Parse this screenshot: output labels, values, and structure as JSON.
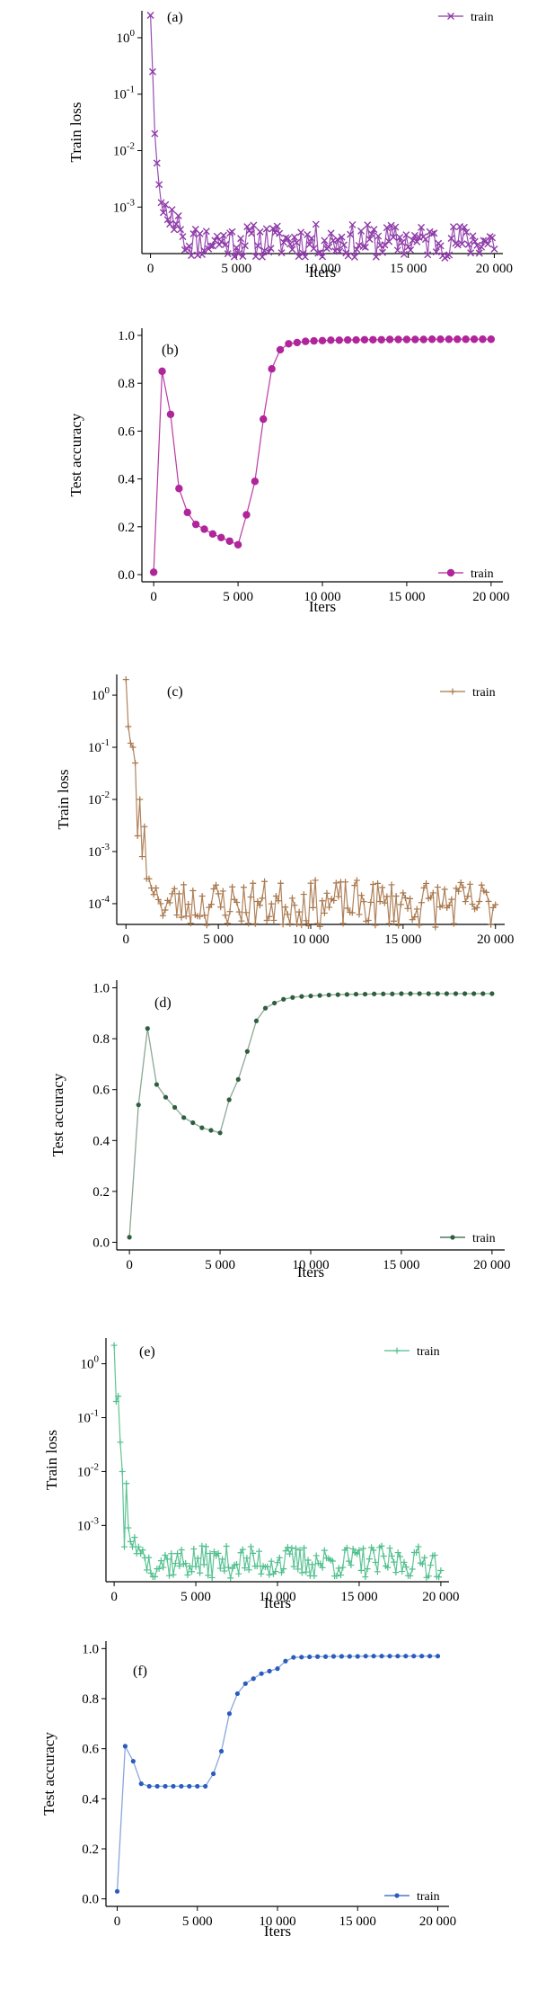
{
  "colors": {
    "a": "#8e3aa8",
    "b": "#b0259a",
    "c": "#a8764a",
    "d": "#2e5e3e",
    "e": "#4fbf8c",
    "f": "#2a5cbd"
  },
  "chart_data": [
    {
      "id": "a",
      "type": "line",
      "panel_label": "(a)",
      "xlabel": "Iters",
      "ylabel": "Train loss",
      "yscale": "log",
      "xlim": [
        -500,
        20500
      ],
      "ylim": [
        0.00015,
        3
      ],
      "xticks": [
        "0",
        "5 000",
        "10 000",
        "15 000",
        "20 000"
      ],
      "yticks": [
        "10^0",
        "10^-1",
        "10^-2",
        "10^-3"
      ],
      "marker": "x",
      "legend_position": "top-right",
      "series": [
        {
          "name": "train",
          "x_start": 0,
          "x_step": 125,
          "noise_amp": 0.3,
          "seed": 11,
          "values_head": [
            2.5,
            0.25,
            0.02,
            0.006,
            0.0025,
            0.0012,
            0.0008,
            0.0011,
            0.0006,
            0.0005,
            0.0009,
            0.0004,
            0.0005,
            0.0007,
            0.0004,
            0.0003
          ],
          "tail_base": 0.00025
        }
      ]
    },
    {
      "id": "b",
      "type": "line",
      "panel_label": "(b)",
      "xlabel": "Iters",
      "ylabel": "Test accuracy",
      "yscale": "linear",
      "xlim": [
        -700,
        20700
      ],
      "ylim": [
        -0.03,
        1.03
      ],
      "xticks": [
        "0",
        "5 000",
        "10 000",
        "15 000",
        "20 000"
      ],
      "yticks": [
        "0.0",
        "0.2",
        "0.4",
        "0.6",
        "0.8",
        "1.0"
      ],
      "marker": "circle",
      "legend_position": "bottom-right",
      "series": [
        {
          "name": "train",
          "x": [
            0,
            500,
            1000,
            1500,
            2000,
            2500,
            3000,
            3500,
            4000,
            4500,
            5000,
            5500,
            6000,
            6500,
            7000,
            7500,
            8000,
            8500,
            9000,
            9500,
            10000,
            10500,
            11000,
            11500,
            12000,
            12500,
            13000,
            13500,
            14000,
            14500,
            15000,
            15500,
            16000,
            16500,
            17000,
            17500,
            18000,
            18500,
            19000,
            19500,
            20000
          ],
          "y": [
            0.01,
            0.85,
            0.67,
            0.36,
            0.26,
            0.21,
            0.19,
            0.17,
            0.155,
            0.14,
            0.125,
            0.25,
            0.39,
            0.65,
            0.86,
            0.94,
            0.965,
            0.97,
            0.975,
            0.977,
            0.978,
            0.98,
            0.98,
            0.981,
            0.981,
            0.982,
            0.982,
            0.982,
            0.983,
            0.983,
            0.983,
            0.983,
            0.983,
            0.984,
            0.984,
            0.984,
            0.984,
            0.984,
            0.984,
            0.984,
            0.984
          ]
        }
      ]
    },
    {
      "id": "c",
      "type": "line",
      "panel_label": "(c)",
      "xlabel": "",
      "ylabel": "Train loss",
      "yscale": "log",
      "xlim": [
        -500,
        20500
      ],
      "ylim": [
        4e-05,
        2.5
      ],
      "xticks": [
        "0",
        "5 000",
        "10 000",
        "15 000",
        "20 000"
      ],
      "yticks": [
        "10^0",
        "10^-1",
        "10^-2",
        "10^-3",
        "10^-4"
      ],
      "marker": "plus",
      "legend_position": "top-right",
      "series": [
        {
          "name": "train",
          "x_start": 0,
          "x_step": 125,
          "noise_amp": 0.45,
          "seed": 23,
          "values_head": [
            2.0,
            0.25,
            0.12,
            0.1,
            0.05,
            0.002,
            0.01,
            0.0008,
            0.003,
            0.0003,
            0.0003,
            0.0002,
            0.00015,
            0.0002,
            0.00012,
            0.0001
          ],
          "tail_base": 0.0001
        }
      ]
    },
    {
      "id": "d",
      "type": "line",
      "panel_label": "(d)",
      "xlabel": "Iters",
      "ylabel": "Test accuracy",
      "yscale": "linear",
      "xlim": [
        -700,
        20700
      ],
      "ylim": [
        -0.03,
        1.03
      ],
      "xticks": [
        "0",
        "5 000",
        "10 000",
        "15 000",
        "20 000"
      ],
      "yticks": [
        "0.0",
        "0.2",
        "0.4",
        "0.6",
        "0.8",
        "1.0"
      ],
      "marker": "dot",
      "legend_position": "bottom-right",
      "series": [
        {
          "name": "train",
          "x": [
            0,
            500,
            1000,
            1500,
            2000,
            2500,
            3000,
            3500,
            4000,
            4500,
            5000,
            5500,
            6000,
            6500,
            7000,
            7500,
            8000,
            8500,
            9000,
            9500,
            10000,
            10500,
            11000,
            11500,
            12000,
            12500,
            13000,
            13500,
            14000,
            14500,
            15000,
            15500,
            16000,
            16500,
            17000,
            17500,
            18000,
            18500,
            19000,
            19500,
            20000
          ],
          "y": [
            0.02,
            0.54,
            0.84,
            0.62,
            0.57,
            0.53,
            0.49,
            0.47,
            0.45,
            0.44,
            0.43,
            0.56,
            0.64,
            0.75,
            0.87,
            0.92,
            0.94,
            0.955,
            0.962,
            0.966,
            0.968,
            0.97,
            0.972,
            0.973,
            0.974,
            0.975,
            0.975,
            0.976,
            0.976,
            0.976,
            0.977,
            0.977,
            0.977,
            0.977,
            0.977,
            0.977,
            0.977,
            0.977,
            0.977,
            0.977,
            0.977
          ]
        }
      ]
    },
    {
      "id": "e",
      "type": "line",
      "panel_label": "(e)",
      "xlabel": "Iters",
      "ylabel": "Train loss",
      "yscale": "log",
      "xlim": [
        -500,
        20500
      ],
      "ylim": [
        9e-05,
        3
      ],
      "xticks": [
        "0",
        "5 000",
        "10 000",
        "15 000",
        "20 000"
      ],
      "yticks": [
        "10^0",
        "10^-1",
        "10^-2",
        "10^-3"
      ],
      "marker": "plus",
      "legend_position": "top-right",
      "series": [
        {
          "name": "train",
          "x_start": 0,
          "x_step": 125,
          "noise_amp": 0.3,
          "seed": 37,
          "values_head": [
            2.2,
            0.2,
            0.25,
            0.035,
            0.01,
            0.0004,
            0.006,
            0.0009,
            0.0005,
            0.0004,
            0.0006,
            0.0003,
            0.0004,
            0.0003,
            0.00035,
            0.00025
          ],
          "tail_base": 0.00021
        }
      ]
    },
    {
      "id": "f",
      "type": "line",
      "panel_label": "(f)",
      "xlabel": "Iters",
      "ylabel": "Test accuracy",
      "yscale": "linear",
      "xlim": [
        -700,
        20700
      ],
      "ylim": [
        -0.03,
        1.03
      ],
      "xticks": [
        "0",
        "5 000",
        "10 000",
        "15 000",
        "20 000"
      ],
      "yticks": [
        "0.0",
        "0.2",
        "0.4",
        "0.6",
        "0.8",
        "1.0"
      ],
      "marker": "dot",
      "legend_position": "bottom-right",
      "series": [
        {
          "name": "train",
          "x": [
            0,
            500,
            1000,
            1500,
            2000,
            2500,
            3000,
            3500,
            4000,
            4500,
            5000,
            5500,
            6000,
            6500,
            7000,
            7500,
            8000,
            8500,
            9000,
            9500,
            10000,
            10500,
            11000,
            11500,
            12000,
            12500,
            13000,
            13500,
            14000,
            14500,
            15000,
            15500,
            16000,
            16500,
            17000,
            17500,
            18000,
            18500,
            19000,
            19500,
            20000
          ],
          "y": [
            0.03,
            0.61,
            0.55,
            0.46,
            0.45,
            0.45,
            0.45,
            0.45,
            0.45,
            0.45,
            0.45,
            0.45,
            0.5,
            0.59,
            0.74,
            0.82,
            0.86,
            0.88,
            0.9,
            0.91,
            0.92,
            0.95,
            0.965,
            0.966,
            0.967,
            0.968,
            0.968,
            0.969,
            0.969,
            0.969,
            0.969,
            0.97,
            0.97,
            0.97,
            0.97,
            0.97,
            0.97,
            0.97,
            0.97,
            0.97,
            0.97
          ]
        }
      ]
    }
  ]
}
